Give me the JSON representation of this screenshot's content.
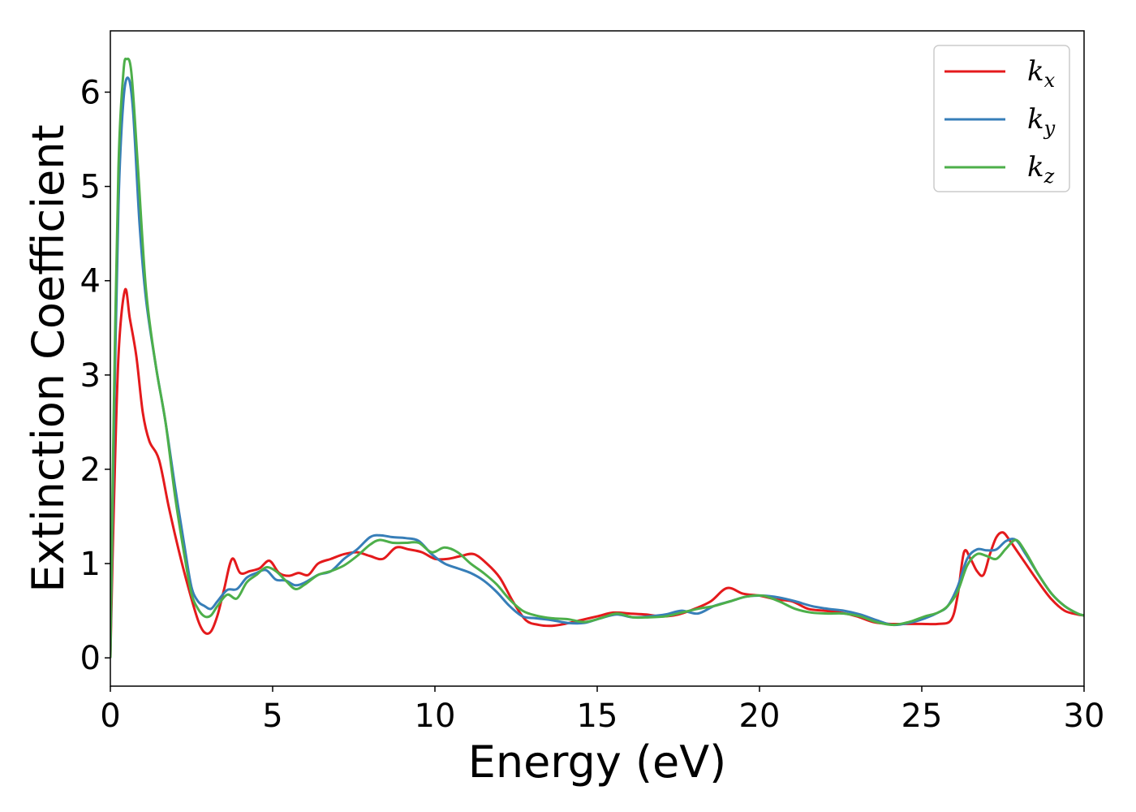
{
  "chart_data": {
    "type": "line",
    "title": "",
    "xlabel": "Energy (eV)",
    "ylabel": "Extinction Coefficient",
    "xlim": [
      0,
      30
    ],
    "ylim": [
      -0.3,
      6.65
    ],
    "xticks": [
      0,
      5,
      10,
      15,
      20,
      25,
      30
    ],
    "yticks": [
      0,
      1,
      2,
      3,
      4,
      5,
      6
    ],
    "grid": false,
    "legend_position": "top-right",
    "series": [
      {
        "name": "k_x",
        "label_base": "k",
        "label_sub": "x",
        "color": "#e41a1c",
        "x": [
          0,
          0.1,
          0.25,
          0.45,
          0.6,
          0.8,
          1.0,
          1.2,
          1.5,
          1.8,
          2.1,
          2.4,
          2.7,
          2.9,
          3.1,
          3.3,
          3.5,
          3.75,
          4.0,
          4.3,
          4.6,
          4.9,
          5.2,
          5.5,
          5.8,
          6.1,
          6.4,
          6.8,
          7.2,
          7.6,
          8.0,
          8.4,
          8.8,
          9.2,
          9.6,
          10.0,
          10.4,
          10.8,
          11.2,
          11.6,
          12.0,
          12.4,
          12.8,
          13.2,
          13.6,
          14.0,
          14.5,
          15.0,
          15.5,
          16.0,
          16.5,
          17.0,
          17.5,
          18.0,
          18.5,
          19.0,
          19.5,
          20.0,
          20.5,
          21.0,
          21.5,
          22.0,
          22.5,
          23.0,
          23.5,
          24.0,
          24.5,
          25.0,
          25.5,
          25.9,
          26.1,
          26.3,
          26.5,
          26.7,
          26.9,
          27.1,
          27.3,
          27.5,
          27.7,
          27.9,
          28.2,
          28.6,
          29.0,
          29.4,
          29.8,
          30.0
        ],
        "y": [
          0.0,
          1.5,
          3.2,
          3.9,
          3.6,
          3.2,
          2.6,
          2.3,
          2.1,
          1.6,
          1.15,
          0.75,
          0.4,
          0.27,
          0.28,
          0.45,
          0.72,
          1.05,
          0.9,
          0.92,
          0.95,
          1.03,
          0.9,
          0.87,
          0.9,
          0.88,
          1.0,
          1.05,
          1.1,
          1.12,
          1.08,
          1.05,
          1.17,
          1.15,
          1.12,
          1.05,
          1.05,
          1.08,
          1.1,
          1.0,
          0.85,
          0.6,
          0.4,
          0.35,
          0.34,
          0.36,
          0.4,
          0.44,
          0.48,
          0.47,
          0.46,
          0.44,
          0.46,
          0.52,
          0.6,
          0.74,
          0.68,
          0.66,
          0.62,
          0.6,
          0.52,
          0.5,
          0.48,
          0.44,
          0.38,
          0.36,
          0.36,
          0.36,
          0.36,
          0.4,
          0.65,
          1.12,
          1.05,
          0.92,
          0.88,
          1.1,
          1.28,
          1.33,
          1.25,
          1.15,
          1.0,
          0.8,
          0.62,
          0.5,
          0.46,
          0.45
        ]
      },
      {
        "name": "k_y",
        "label_base": "k",
        "label_sub": "y",
        "color": "#377eb8",
        "x": [
          0,
          0.1,
          0.25,
          0.4,
          0.55,
          0.7,
          0.9,
          1.1,
          1.4,
          1.7,
          2.0,
          2.3,
          2.5,
          2.7,
          2.9,
          3.1,
          3.3,
          3.6,
          3.9,
          4.2,
          4.5,
          4.8,
          5.1,
          5.4,
          5.7,
          6.0,
          6.4,
          6.8,
          7.2,
          7.6,
          8.0,
          8.3,
          8.7,
          9.1,
          9.5,
          9.9,
          10.3,
          10.7,
          11.1,
          11.5,
          11.9,
          12.3,
          12.7,
          13.1,
          13.6,
          14.1,
          14.6,
          15.1,
          15.6,
          16.1,
          16.6,
          17.1,
          17.6,
          18.1,
          18.6,
          19.1,
          19.6,
          20.1,
          20.6,
          21.1,
          21.6,
          22.1,
          22.6,
          23.1,
          23.6,
          24.1,
          24.6,
          25.1,
          25.5,
          25.8,
          26.1,
          26.4,
          26.7,
          27.0,
          27.3,
          27.6,
          27.9,
          28.2,
          28.6,
          29.0,
          29.4,
          29.8,
          30.0
        ],
        "y": [
          0.0,
          2.2,
          4.8,
          5.9,
          6.15,
          5.8,
          4.6,
          3.8,
          3.1,
          2.5,
          1.8,
          1.15,
          0.75,
          0.6,
          0.55,
          0.52,
          0.6,
          0.72,
          0.73,
          0.85,
          0.9,
          0.93,
          0.83,
          0.82,
          0.77,
          0.8,
          0.88,
          0.92,
          1.05,
          1.15,
          1.28,
          1.3,
          1.28,
          1.27,
          1.24,
          1.1,
          1.0,
          0.95,
          0.9,
          0.82,
          0.7,
          0.55,
          0.44,
          0.42,
          0.4,
          0.37,
          0.37,
          0.42,
          0.46,
          0.43,
          0.44,
          0.46,
          0.5,
          0.47,
          0.55,
          0.6,
          0.65,
          0.66,
          0.64,
          0.6,
          0.55,
          0.52,
          0.5,
          0.46,
          0.4,
          0.35,
          0.37,
          0.42,
          0.48,
          0.55,
          0.75,
          1.05,
          1.15,
          1.14,
          1.15,
          1.24,
          1.25,
          1.1,
          0.88,
          0.68,
          0.55,
          0.47,
          0.45
        ]
      },
      {
        "name": "k_z",
        "label_base": "k",
        "label_sub": "z",
        "color": "#4daf4a",
        "x": [
          0,
          0.1,
          0.25,
          0.4,
          0.5,
          0.65,
          0.85,
          1.1,
          1.4,
          1.7,
          2.0,
          2.3,
          2.5,
          2.7,
          2.9,
          3.1,
          3.3,
          3.6,
          3.9,
          4.2,
          4.5,
          4.8,
          5.1,
          5.4,
          5.7,
          6.0,
          6.4,
          6.8,
          7.2,
          7.6,
          8.0,
          8.3,
          8.7,
          9.1,
          9.5,
          9.9,
          10.3,
          10.7,
          11.1,
          11.5,
          11.9,
          12.3,
          12.7,
          13.1,
          13.6,
          14.1,
          14.6,
          15.1,
          15.6,
          16.1,
          16.6,
          17.1,
          17.6,
          18.1,
          18.6,
          19.1,
          19.6,
          20.1,
          20.6,
          21.1,
          21.6,
          22.1,
          22.6,
          23.1,
          23.6,
          24.1,
          24.6,
          25.1,
          25.5,
          25.8,
          26.1,
          26.4,
          26.7,
          27.0,
          27.3,
          27.6,
          27.9,
          28.2,
          28.6,
          29.0,
          29.4,
          29.8,
          30.0
        ],
        "y": [
          0.0,
          2.5,
          5.2,
          6.2,
          6.35,
          6.2,
          5.2,
          3.9,
          3.1,
          2.5,
          1.7,
          1.05,
          0.68,
          0.52,
          0.44,
          0.45,
          0.55,
          0.67,
          0.63,
          0.8,
          0.88,
          0.96,
          0.92,
          0.82,
          0.73,
          0.78,
          0.88,
          0.92,
          0.98,
          1.08,
          1.2,
          1.25,
          1.22,
          1.22,
          1.22,
          1.12,
          1.17,
          1.12,
          1.0,
          0.9,
          0.78,
          0.62,
          0.5,
          0.45,
          0.42,
          0.41,
          0.38,
          0.42,
          0.47,
          0.43,
          0.43,
          0.44,
          0.48,
          0.52,
          0.55,
          0.6,
          0.65,
          0.66,
          0.6,
          0.52,
          0.48,
          0.47,
          0.47,
          0.44,
          0.38,
          0.35,
          0.38,
          0.44,
          0.48,
          0.55,
          0.7,
          0.98,
          1.1,
          1.08,
          1.05,
          1.16,
          1.25,
          1.12,
          0.88,
          0.68,
          0.55,
          0.47,
          0.45
        ]
      }
    ]
  }
}
